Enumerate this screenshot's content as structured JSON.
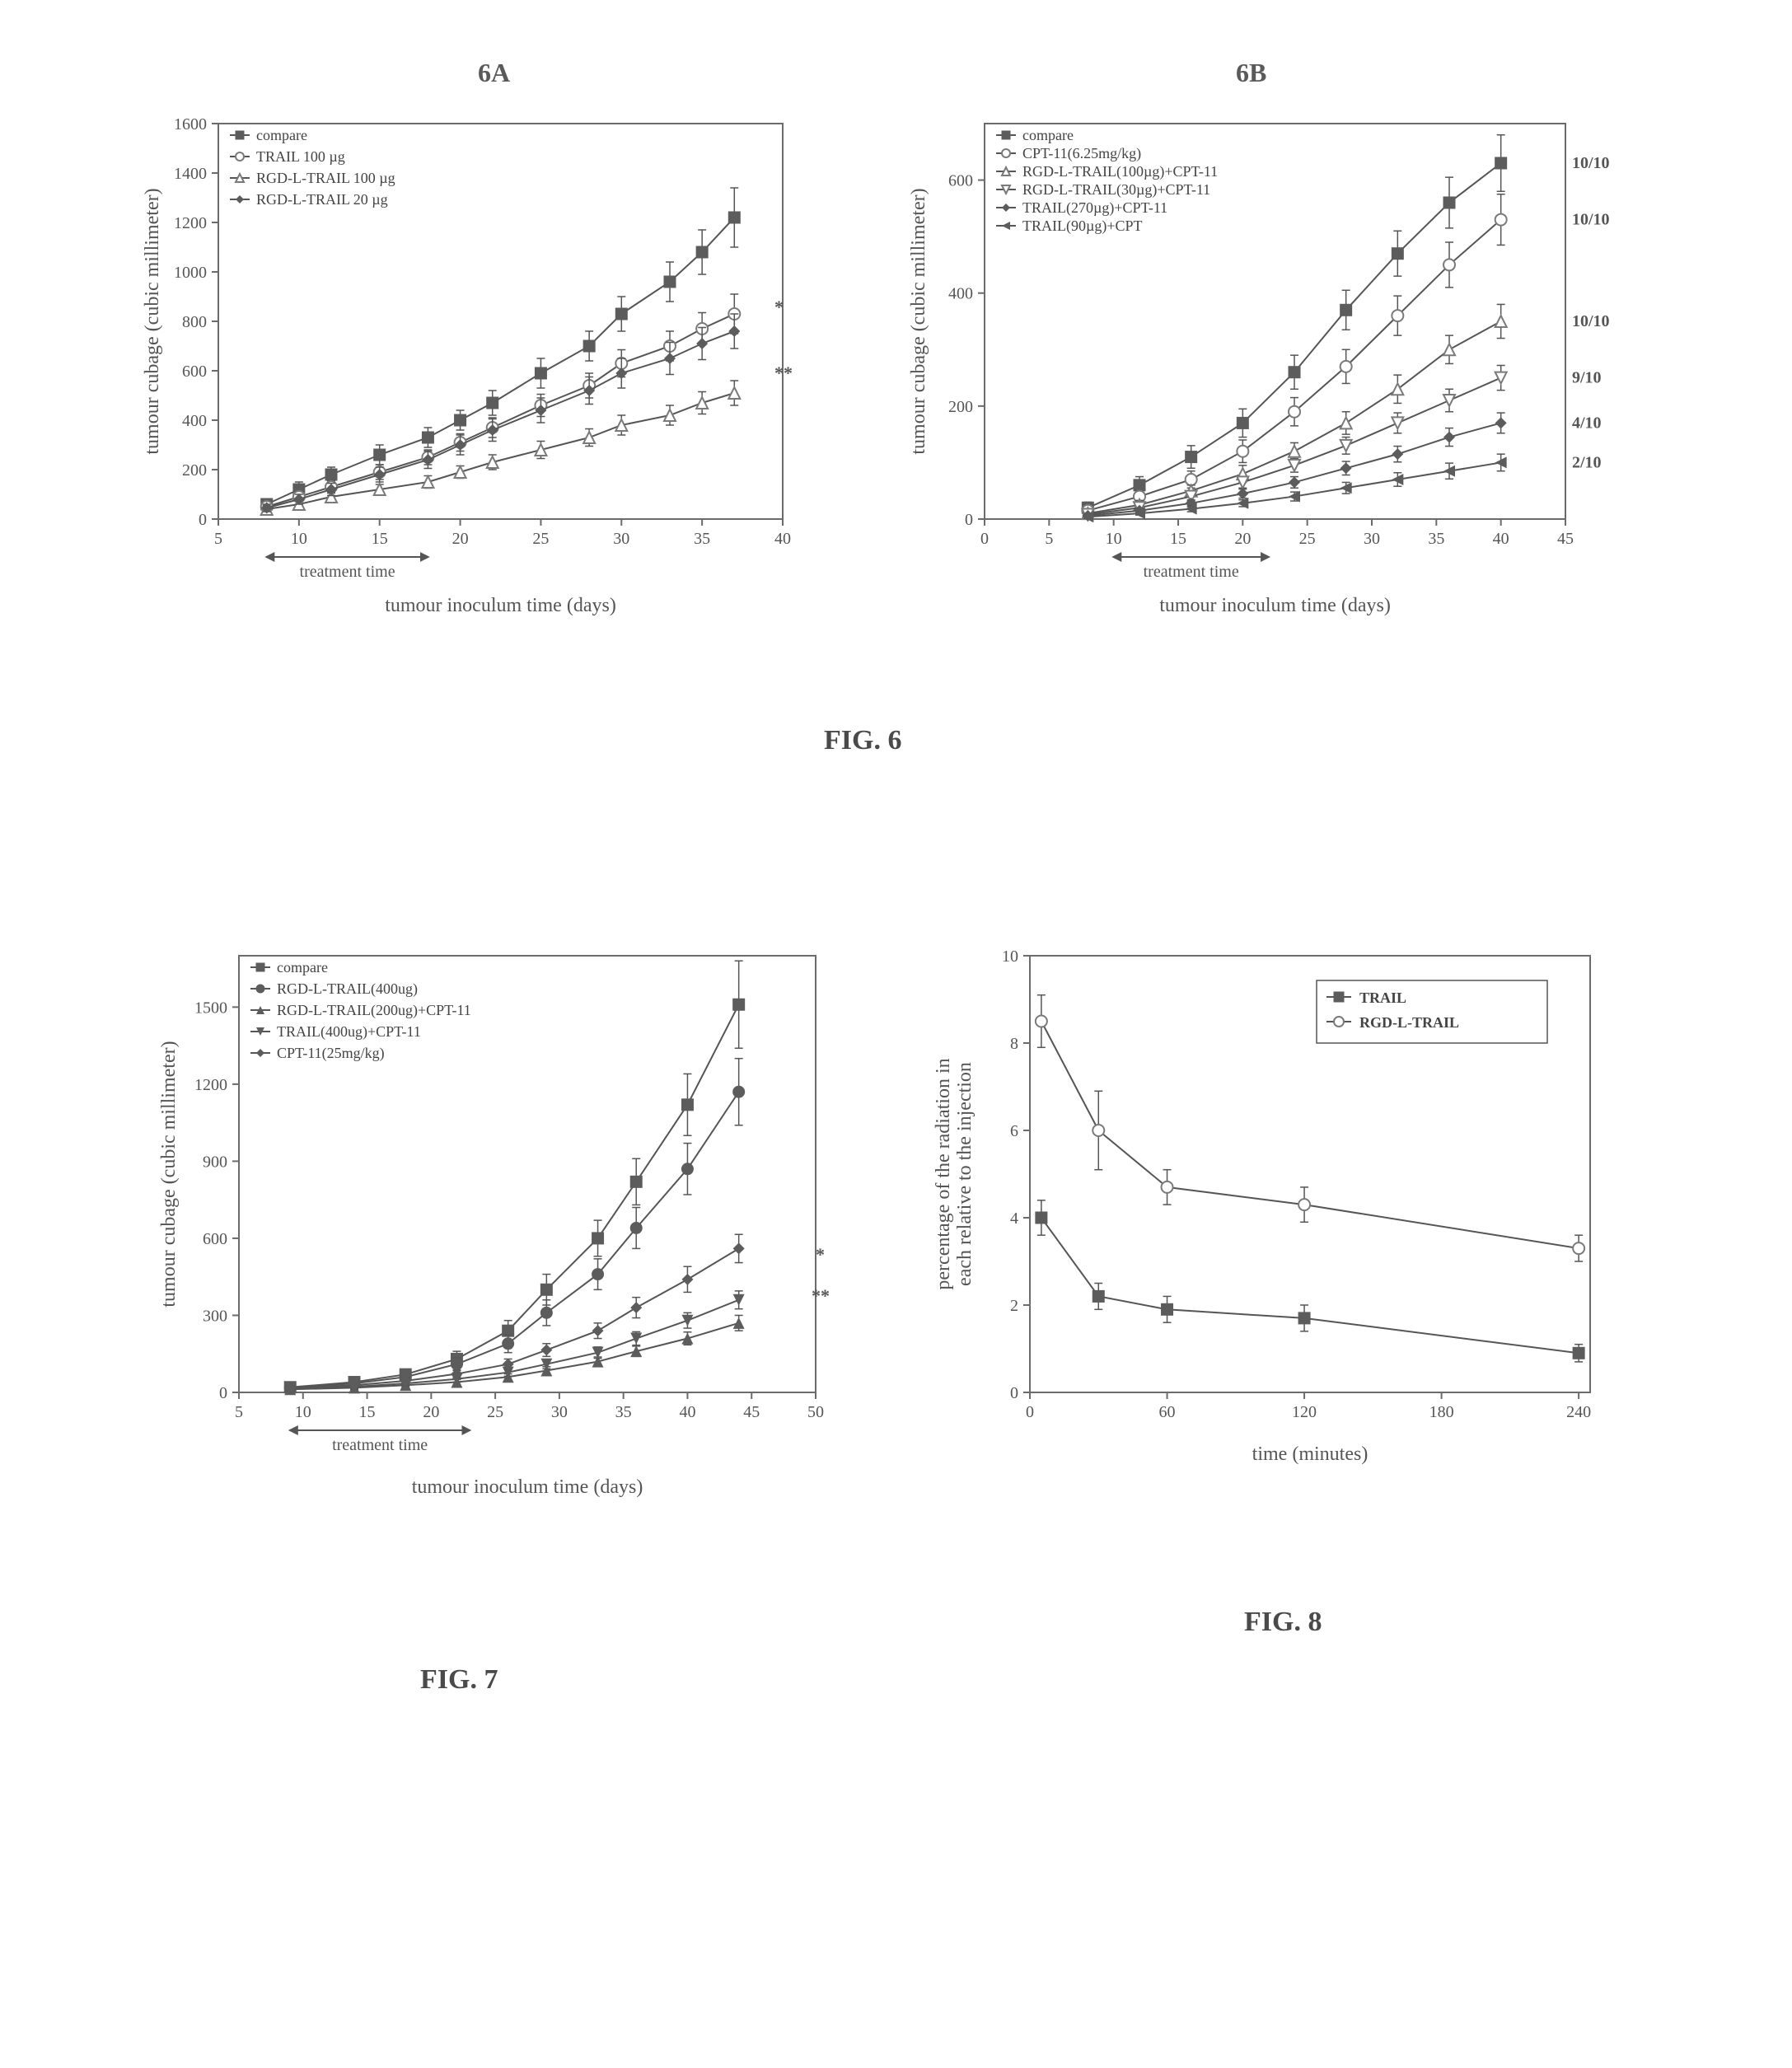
{
  "panel_labels": {
    "a": "6A",
    "b": "6B"
  },
  "fig_labels": {
    "fig6": "FIG. 6",
    "fig7": "FIG. 7",
    "fig8": "FIG. 8"
  },
  "common": {
    "xlabel_tumour": "tumour inoculum time (days)",
    "ylabel_cubage": "tumour cubage (cubic millimeter)",
    "tx_label": "treatment time",
    "annot_star": "*",
    "annot_dstar": "**"
  },
  "fig6a": {
    "type": "line",
    "xlim": [
      5,
      40
    ],
    "xticks": [
      5,
      10,
      15,
      20,
      25,
      30,
      35,
      40
    ],
    "ylim": [
      0,
      1600
    ],
    "yticks": [
      0,
      200,
      400,
      600,
      800,
      1000,
      1200,
      1400,
      1600
    ],
    "tx_window": [
      8,
      18
    ],
    "series": [
      {
        "label": "compare",
        "marker": "square-filled",
        "color": "#5c5c5c",
        "x": [
          8,
          10,
          12,
          15,
          18,
          20,
          22,
          25,
          28,
          30,
          33,
          35,
          37
        ],
        "y": [
          60,
          120,
          180,
          260,
          330,
          400,
          470,
          590,
          700,
          830,
          960,
          1080,
          1220
        ],
        "err": [
          20,
          30,
          30,
          40,
          40,
          40,
          50,
          60,
          60,
          70,
          80,
          90,
          120
        ]
      },
      {
        "label": "TRAIL 100 µg",
        "marker": "circle-open",
        "color": "#7a7a7a",
        "x": [
          8,
          10,
          12,
          15,
          18,
          20,
          22,
          25,
          28,
          30,
          33,
          35,
          37
        ],
        "y": [
          50,
          90,
          130,
          190,
          250,
          310,
          370,
          460,
          540,
          630,
          700,
          770,
          830
        ],
        "err": [
          20,
          20,
          25,
          30,
          30,
          35,
          40,
          45,
          50,
          55,
          60,
          65,
          80
        ]
      },
      {
        "label": "RGD-L-TRAIL 100 µg",
        "marker": "triangle-open",
        "color": "#7a7a7a",
        "x": [
          8,
          10,
          12,
          15,
          18,
          20,
          22,
          25,
          28,
          30,
          33,
          35,
          37
        ],
        "y": [
          40,
          60,
          90,
          120,
          150,
          190,
          230,
          280,
          330,
          380,
          420,
          470,
          510
        ],
        "err": [
          15,
          15,
          20,
          20,
          25,
          25,
          30,
          35,
          35,
          40,
          40,
          45,
          50
        ]
      },
      {
        "label": "RGD-L-TRAIL 20 µg",
        "marker": "diamond-filled",
        "color": "#5c5c5c",
        "x": [
          8,
          10,
          12,
          15,
          18,
          20,
          22,
          25,
          28,
          30,
          33,
          35,
          37
        ],
        "y": [
          45,
          80,
          120,
          180,
          240,
          300,
          360,
          440,
          520,
          590,
          650,
          710,
          760
        ],
        "err": [
          15,
          20,
          25,
          30,
          35,
          40,
          45,
          50,
          55,
          60,
          65,
          65,
          70
        ]
      }
    ]
  },
  "fig6b": {
    "type": "line",
    "xlim": [
      0,
      45
    ],
    "xticks": [
      0,
      5,
      10,
      15,
      20,
      25,
      30,
      35,
      40,
      45
    ],
    "ylim": [
      0,
      700
    ],
    "yticks": [
      0,
      200,
      400,
      600
    ],
    "tx_window": [
      10,
      22
    ],
    "right_labels": [
      "10/10",
      "10/10",
      "10/10",
      "9/10",
      "4/10",
      "2/10"
    ],
    "series": [
      {
        "label": "compare",
        "marker": "square-filled",
        "color": "#5c5c5c",
        "x": [
          8,
          12,
          16,
          20,
          24,
          28,
          32,
          36,
          40
        ],
        "y": [
          20,
          60,
          110,
          170,
          260,
          370,
          470,
          560,
          630
        ],
        "err": [
          10,
          15,
          20,
          25,
          30,
          35,
          40,
          45,
          50
        ]
      },
      {
        "label": "CPT-11(6.25mg/kg)",
        "marker": "circle-open",
        "color": "#7a7a7a",
        "x": [
          8,
          12,
          16,
          20,
          24,
          28,
          32,
          36,
          40
        ],
        "y": [
          15,
          40,
          70,
          120,
          190,
          270,
          360,
          450,
          530
        ],
        "err": [
          10,
          10,
          15,
          20,
          25,
          30,
          35,
          40,
          45
        ]
      },
      {
        "label": "RGD-L-TRAIL(100µg)+CPT-11",
        "marker": "triangle-open",
        "color": "#7a7a7a",
        "x": [
          8,
          12,
          16,
          20,
          24,
          28,
          32,
          36,
          40
        ],
        "y": [
          10,
          25,
          50,
          80,
          120,
          170,
          230,
          300,
          350
        ],
        "err": [
          5,
          8,
          10,
          15,
          15,
          20,
          25,
          25,
          30
        ]
      },
      {
        "label": "RGD-L-TRAIL(30µg)+CPT-11",
        "marker": "invtriangle-open",
        "color": "#7a7a7a",
        "x": [
          8,
          12,
          16,
          20,
          24,
          28,
          32,
          36,
          40
        ],
        "y": [
          8,
          20,
          40,
          65,
          95,
          130,
          170,
          210,
          250
        ],
        "err": [
          5,
          5,
          8,
          10,
          12,
          15,
          18,
          20,
          22
        ]
      },
      {
        "label": "TRAIL(270µg)+CPT-11",
        "marker": "diamond-filled",
        "color": "#5c5c5c",
        "x": [
          8,
          12,
          16,
          20,
          24,
          28,
          32,
          36,
          40
        ],
        "y": [
          6,
          15,
          28,
          45,
          65,
          90,
          115,
          145,
          170
        ],
        "err": [
          4,
          4,
          6,
          8,
          10,
          12,
          14,
          16,
          18
        ]
      },
      {
        "label": "TRAIL(90µg)+CPT",
        "marker": "lefttriangle-filled",
        "color": "#5c5c5c",
        "x": [
          8,
          12,
          16,
          20,
          24,
          28,
          32,
          36,
          40
        ],
        "y": [
          4,
          10,
          18,
          28,
          40,
          55,
          70,
          85,
          100
        ],
        "err": [
          3,
          3,
          5,
          6,
          8,
          10,
          12,
          14,
          15
        ]
      }
    ]
  },
  "fig7": {
    "type": "line",
    "xlim": [
      5,
      50
    ],
    "xticks": [
      5,
      10,
      15,
      20,
      25,
      30,
      35,
      40,
      45,
      50
    ],
    "ylim": [
      0,
      1700
    ],
    "yticks": [
      0,
      300,
      600,
      900,
      1200,
      1500
    ],
    "tx_window": [
      9,
      23
    ],
    "series": [
      {
        "label": "compare",
        "marker": "square-filled",
        "color": "#5c5c5c",
        "x": [
          9,
          14,
          18,
          22,
          26,
          29,
          33,
          36,
          40,
          44
        ],
        "y": [
          20,
          40,
          70,
          130,
          240,
          400,
          600,
          820,
          1120,
          1510
        ],
        "err": [
          10,
          15,
          20,
          30,
          40,
          60,
          70,
          90,
          120,
          170
        ]
      },
      {
        "label": "RGD-L-TRAIL(400ug)",
        "marker": "circle-filled",
        "color": "#5c5c5c",
        "x": [
          9,
          14,
          18,
          22,
          26,
          29,
          33,
          36,
          40,
          44
        ],
        "y": [
          18,
          35,
          60,
          110,
          190,
          310,
          460,
          640,
          870,
          1170
        ],
        "err": [
          10,
          12,
          18,
          25,
          35,
          50,
          60,
          80,
          100,
          130
        ]
      },
      {
        "label": "RGD-L-TRAIL(200ug)+CPT-11",
        "marker": "triangle-filled",
        "color": "#5c5c5c",
        "x": [
          9,
          14,
          18,
          22,
          26,
          29,
          33,
          36,
          40,
          44
        ],
        "y": [
          12,
          18,
          28,
          40,
          60,
          85,
          120,
          160,
          210,
          270
        ],
        "err": [
          5,
          6,
          8,
          10,
          12,
          15,
          18,
          20,
          25,
          30
        ]
      },
      {
        "label": "TRAIL(400ug)+CPT-11",
        "marker": "invtriangle-filled",
        "color": "#5c5c5c",
        "x": [
          9,
          14,
          18,
          22,
          26,
          29,
          33,
          36,
          40,
          44
        ],
        "y": [
          14,
          22,
          35,
          52,
          78,
          110,
          155,
          210,
          280,
          360
        ],
        "err": [
          6,
          8,
          10,
          12,
          15,
          18,
          22,
          26,
          30,
          35
        ]
      },
      {
        "label": "CPT-11(25mg/kg)",
        "marker": "diamond-filled",
        "color": "#5c5c5c",
        "x": [
          9,
          14,
          18,
          22,
          26,
          29,
          33,
          36,
          40,
          44
        ],
        "y": [
          16,
          28,
          45,
          72,
          110,
          165,
          240,
          330,
          440,
          560
        ],
        "err": [
          8,
          10,
          12,
          15,
          20,
          25,
          30,
          40,
          50,
          55
        ]
      }
    ]
  },
  "fig8": {
    "type": "line",
    "xlabel": "time (minutes)",
    "ylabel": "percentage of the radiation in\neach relative to the injection",
    "xlim": [
      0,
      245
    ],
    "xticks": [
      0,
      60,
      120,
      180,
      240
    ],
    "ylim": [
      0,
      10
    ],
    "yticks": [
      0,
      2,
      4,
      6,
      8,
      10
    ],
    "series": [
      {
        "label": "TRAIL",
        "marker": "square-filled",
        "color": "#5c5c5c",
        "x": [
          5,
          30,
          60,
          120,
          240
        ],
        "y": [
          4.0,
          2.2,
          1.9,
          1.7,
          0.9
        ],
        "err": [
          0.4,
          0.3,
          0.3,
          0.3,
          0.2
        ]
      },
      {
        "label": "RGD-L-TRAIL",
        "marker": "circle-open",
        "color": "#7a7a7a",
        "x": [
          5,
          30,
          60,
          120,
          240
        ],
        "y": [
          8.5,
          6.0,
          4.7,
          4.3,
          3.3
        ],
        "err": [
          0.6,
          0.9,
          0.4,
          0.4,
          0.3
        ]
      }
    ]
  },
  "style": {
    "legend_dash": "− · −",
    "line_color": "#555555",
    "marker_size": 7,
    "err_cap": 5
  }
}
